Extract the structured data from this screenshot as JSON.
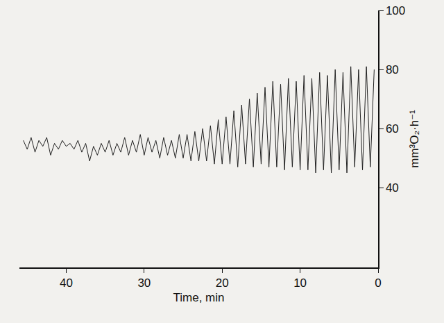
{
  "chart_data": {
    "type": "line",
    "x_label": "Time, min",
    "y_label": "mm³O₂·h⁻¹",
    "x": [
      45.5,
      45,
      44.5,
      44,
      43.5,
      43,
      42.5,
      42,
      41.5,
      41,
      40.5,
      40,
      39.5,
      39,
      38.5,
      38,
      37.5,
      37,
      36.5,
      36,
      35.5,
      35,
      34.5,
      34,
      33.5,
      33,
      32.5,
      32,
      31.5,
      31,
      30.5,
      30,
      29.5,
      29,
      28.5,
      28,
      27.5,
      27,
      26.5,
      26,
      25.5,
      25,
      24.5,
      24,
      23.5,
      23,
      22.5,
      22,
      21.5,
      21,
      20.5,
      20,
      19.5,
      19,
      18.5,
      18,
      17.5,
      17,
      16.5,
      16,
      15.5,
      15,
      14.5,
      14,
      13.5,
      13,
      12.5,
      12,
      11.5,
      11,
      10.5,
      10,
      9.5,
      9,
      8.5,
      8,
      7.5,
      7,
      6.5,
      6,
      5.5,
      5,
      4.5,
      4,
      3.5,
      3,
      2.5,
      2,
      1.5,
      1,
      0.5
    ],
    "values": [
      56,
      53,
      57,
      52,
      56,
      54,
      57,
      51,
      55,
      53,
      56,
      54,
      55,
      53,
      56,
      52,
      55,
      49,
      54,
      51,
      55,
      52,
      56,
      51,
      55,
      52,
      57,
      51,
      56,
      52,
      58,
      51,
      57,
      52,
      56,
      50,
      57,
      51,
      56,
      50,
      58,
      50,
      58,
      49,
      59,
      49,
      60,
      49,
      61,
      48,
      63,
      48,
      64,
      48,
      66,
      47,
      68,
      48,
      70,
      47,
      72,
      48,
      74,
      47,
      76,
      47,
      75,
      46,
      77,
      47,
      76,
      46,
      78,
      46,
      77,
      45,
      79,
      46,
      78,
      45,
      80,
      46,
      79,
      45,
      81,
      47,
      80,
      46,
      81,
      47,
      80
    ],
    "color": "#222222",
    "xlim": [
      46,
      0
    ],
    "xticks": [
      40,
      30,
      20,
      10,
      0
    ],
    "ylim": [
      13,
      100
    ],
    "yticks": [
      40,
      60,
      80,
      100
    ],
    "grid": false
  }
}
